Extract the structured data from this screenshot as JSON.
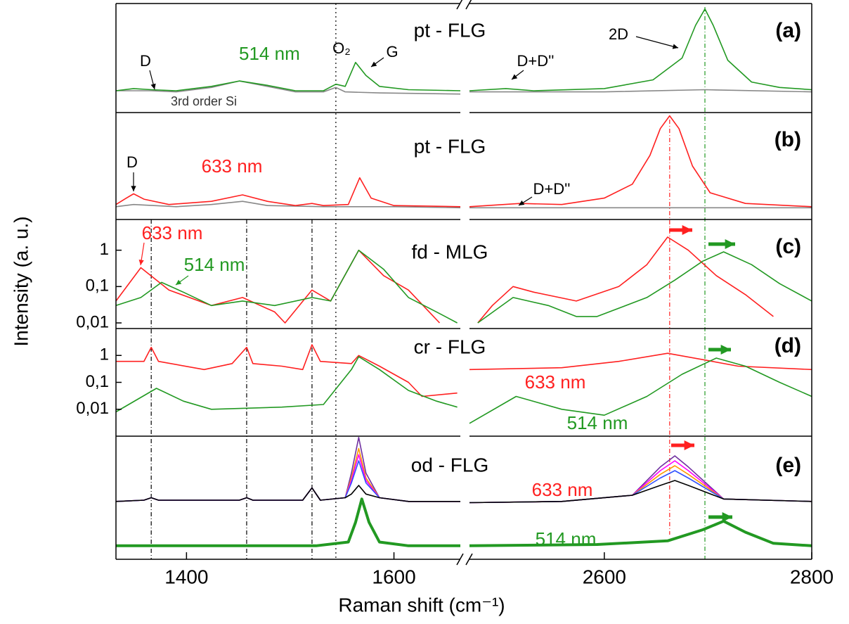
{
  "chart_data": [
    {
      "type": "line",
      "label": "pt - FLG",
      "panel": "(a)",
      "log_y": false,
      "ylim": [
        0,
        1
      ],
      "annotations": [
        "pt - FLG",
        "(a)",
        "514 nm",
        "D",
        "O₂",
        "G",
        "3rd order Si",
        "2D",
        "D+D''"
      ],
      "series": [
        {
          "color": "#888888",
          "x": [
            1332,
            1366,
            1390,
            1424,
            1451,
            1478,
            1505,
            1532,
            1544,
            1553,
            1586,
            1664
          ],
          "values": [
            0.2,
            0.2,
            0.19,
            0.23,
            0.29,
            0.24,
            0.19,
            0.19,
            0.23,
            0.19,
            0.18,
            0.17
          ]
        },
        {
          "color": "#888888",
          "x": [
            2470,
            2600,
            2697,
            2800
          ],
          "values": [
            0.19,
            0.19,
            0.21,
            0.19
          ]
        },
        {
          "color": "#229922",
          "x": [
            1332,
            1349,
            1366,
            1390,
            1424,
            1451,
            1478,
            1505,
            1532,
            1544,
            1553,
            1563,
            1573,
            1586,
            1614,
            1664
          ],
          "values": [
            0.2,
            0.22,
            0.21,
            0.2,
            0.24,
            0.29,
            0.25,
            0.2,
            0.2,
            0.26,
            0.24,
            0.46,
            0.34,
            0.24,
            0.21,
            0.2
          ]
        },
        {
          "color": "#229922",
          "x": [
            2470,
            2505,
            2532,
            2600,
            2647,
            2675,
            2688,
            2697,
            2705,
            2719,
            2742,
            2769,
            2800
          ],
          "values": [
            0.2,
            0.22,
            0.2,
            0.22,
            0.3,
            0.5,
            0.8,
            0.95,
            0.8,
            0.48,
            0.28,
            0.23,
            0.21
          ]
        }
      ]
    },
    {
      "type": "line",
      "label": "pt - FLG",
      "panel": "(b)",
      "log_y": false,
      "ylim": [
        0,
        1
      ],
      "annotations": [
        "pt - FLG",
        "(b)",
        "633 nm",
        "D",
        "D+D''"
      ],
      "series": [
        {
          "color": "#888888",
          "x": [
            1332,
            1349,
            1390,
            1424,
            1454,
            1478,
            1532,
            1600,
            1664
          ],
          "values": [
            0.12,
            0.14,
            0.12,
            0.14,
            0.17,
            0.13,
            0.12,
            0.12,
            0.11
          ]
        },
        {
          "color": "#888888",
          "x": [
            2470,
            2800
          ],
          "values": [
            0.11,
            0.11
          ]
        },
        {
          "color": "#ff2020",
          "x": [
            1332,
            1342,
            1349,
            1359,
            1383,
            1424,
            1454,
            1478,
            1505,
            1521,
            1532,
            1556,
            1567,
            1578,
            1600,
            1664
          ],
          "values": [
            0.14,
            0.2,
            0.24,
            0.19,
            0.14,
            0.17,
            0.23,
            0.17,
            0.13,
            0.15,
            0.13,
            0.14,
            0.39,
            0.2,
            0.13,
            0.12
          ]
        },
        {
          "color": "#ff2020",
          "x": [
            2470,
            2519,
            2559,
            2600,
            2627,
            2644,
            2654,
            2663,
            2672,
            2685,
            2702,
            2736,
            2800
          ],
          "values": [
            0.12,
            0.15,
            0.14,
            0.2,
            0.33,
            0.6,
            0.85,
            0.97,
            0.85,
            0.5,
            0.25,
            0.15,
            0.12
          ]
        }
      ]
    },
    {
      "type": "line",
      "label": "fd - MLG",
      "panel": "(c)",
      "log_y": true,
      "ylim": [
        0.007,
        7
      ],
      "yticks": [
        1,
        {
          "value": 0.1,
          "label": "0,1"
        },
        {
          "value": 0.01,
          "label": "0,01"
        }
      ],
      "annotations": [
        "fd - MLG",
        "(c)",
        "633 nm",
        "514 nm"
      ],
      "series": [
        {
          "color": "#ff2020",
          "x": [
            1332,
            1356,
            1383,
            1424,
            1454,
            1485,
            1495,
            1521,
            1539,
            1566,
            1590,
            1614,
            1634,
            1644
          ],
          "values": [
            0.04,
            0.33,
            0.08,
            0.03,
            0.05,
            0.02,
            0.01,
            0.08,
            0.04,
            1,
            0.2,
            0.08,
            0.02,
            0.01
          ]
        },
        {
          "color": "#229922",
          "x": [
            1332,
            1356,
            1376,
            1397,
            1424,
            1454,
            1485,
            1521,
            1539,
            1566,
            1590,
            1614,
            1641,
            1661
          ],
          "values": [
            0.03,
            0.05,
            0.13,
            0.07,
            0.03,
            0.04,
            0.03,
            0.05,
            0.04,
            1,
            0.3,
            0.05,
            0.02,
            0.01
          ]
        },
        {
          "color": "#ff2020",
          "x": [
            2478,
            2492,
            2512,
            2532,
            2573,
            2614,
            2641,
            2661,
            2681,
            2708,
            2736,
            2763
          ],
          "values": [
            0.01,
            0.03,
            0.1,
            0.07,
            0.04,
            0.1,
            0.4,
            2.3,
            1,
            0.2,
            0.06,
            0.015
          ]
        },
        {
          "color": "#229922",
          "x": [
            2478,
            2512,
            2546,
            2573,
            2593,
            2641,
            2668,
            2695,
            2715,
            2742,
            2769,
            2800
          ],
          "values": [
            0.01,
            0.05,
            0.03,
            0.015,
            0.015,
            0.05,
            0.15,
            0.5,
            0.9,
            0.4,
            0.12,
            0.04
          ]
        }
      ]
    },
    {
      "type": "line",
      "label": "cr - FLG",
      "panel": "(d)",
      "log_y": true,
      "ylim": [
        0.001,
        10
      ],
      "yticks": [
        1,
        {
          "value": 0.1,
          "label": "0,1"
        },
        {
          "value": 0.01,
          "label": "0,01"
        }
      ],
      "annotations": [
        "cr - FLG",
        "(d)",
        "633 nm",
        "514 nm"
      ],
      "series": [
        {
          "color": "#ff2020",
          "x": [
            1332,
            1359,
            1366,
            1373,
            1417,
            1444,
            1458,
            1464,
            1492,
            1512,
            1521,
            1529,
            1559,
            1566,
            1586,
            1614,
            1627,
            1661
          ],
          "values": [
            0.6,
            0.6,
            2,
            0.6,
            0.3,
            0.5,
            2,
            0.5,
            0.4,
            0.3,
            2.5,
            0.6,
            0.5,
            1,
            0.4,
            0.1,
            0.03,
            0.04
          ]
        },
        {
          "color": "#229922",
          "x": [
            1332,
            1371,
            1397,
            1424,
            1492,
            1532,
            1559,
            1566,
            1586,
            1614,
            1641,
            1661
          ],
          "values": [
            0.008,
            0.06,
            0.02,
            0.01,
            0.012,
            0.015,
            0.3,
            0.9,
            0.3,
            0.05,
            0.02,
            0.012
          ]
        },
        {
          "color": "#ff2020",
          "x": [
            2470,
            2559,
            2614,
            2661,
            2695,
            2729,
            2800
          ],
          "values": [
            0.3,
            0.35,
            0.6,
            1.2,
            0.7,
            0.4,
            0.3
          ]
        },
        {
          "color": "#229922",
          "x": [
            2470,
            2515,
            2559,
            2600,
            2641,
            2675,
            2708,
            2736,
            2769,
            2800
          ],
          "values": [
            0.003,
            0.03,
            0.01,
            0.006,
            0.03,
            0.2,
            0.8,
            0.4,
            0.1,
            0.03
          ]
        }
      ]
    },
    {
      "type": "line",
      "label": "od - FLG",
      "panel": "(e)",
      "log_y": false,
      "ylim": [
        0,
        1
      ],
      "annotations": [
        "od - FLG",
        "(e)",
        "633 nm",
        "514 nm"
      ],
      "series": [
        {
          "color": "#7030a0",
          "x": [
            1332,
            1359,
            1366,
            1373,
            1451,
            1458,
            1464,
            1512,
            1521,
            1529,
            1553,
            1559,
            1566,
            1573,
            1586,
            1614,
            1664
          ],
          "values": [
            0.47,
            0.48,
            0.5,
            0.48,
            0.48,
            0.5,
            0.48,
            0.48,
            0.58,
            0.48,
            0.5,
            0.7,
            0.99,
            0.7,
            0.5,
            0.47,
            0.47
          ]
        },
        {
          "color": "#ff9900",
          "x": [
            1332,
            1359,
            1366,
            1373,
            1451,
            1458,
            1464,
            1512,
            1521,
            1529,
            1553,
            1559,
            1566,
            1573,
            1586,
            1614,
            1664
          ],
          "values": [
            0.47,
            0.48,
            0.5,
            0.48,
            0.48,
            0.5,
            0.48,
            0.48,
            0.58,
            0.48,
            0.5,
            0.66,
            0.9,
            0.66,
            0.5,
            0.47,
            0.47
          ]
        },
        {
          "color": "#ff00ff",
          "x": [
            1332,
            1359,
            1366,
            1373,
            1451,
            1458,
            1464,
            1512,
            1521,
            1529,
            1553,
            1559,
            1566,
            1573,
            1586,
            1614,
            1664
          ],
          "values": [
            0.47,
            0.48,
            0.5,
            0.48,
            0.48,
            0.5,
            0.48,
            0.48,
            0.58,
            0.48,
            0.5,
            0.64,
            0.85,
            0.64,
            0.5,
            0.47,
            0.47
          ]
        },
        {
          "color": "#3050ff",
          "x": [
            1332,
            1359,
            1366,
            1373,
            1451,
            1458,
            1464,
            1512,
            1521,
            1529,
            1553,
            1559,
            1566,
            1573,
            1586,
            1614,
            1664
          ],
          "values": [
            0.47,
            0.48,
            0.5,
            0.48,
            0.48,
            0.5,
            0.48,
            0.48,
            0.58,
            0.48,
            0.5,
            0.62,
            0.8,
            0.62,
            0.5,
            0.47,
            0.47
          ]
        },
        {
          "color": "#000000",
          "x": [
            1332,
            1359,
            1366,
            1373,
            1451,
            1458,
            1464,
            1512,
            1521,
            1529,
            1553,
            1559,
            1566,
            1573,
            1586,
            1614,
            1664
          ],
          "values": [
            0.47,
            0.48,
            0.5,
            0.48,
            0.48,
            0.5,
            0.48,
            0.48,
            0.58,
            0.48,
            0.5,
            0.53,
            0.6,
            0.53,
            0.5,
            0.47,
            0.47
          ]
        },
        {
          "color": "#7030a0",
          "x": [
            2470,
            2559,
            2627,
            2654,
            2668,
            2681,
            2715,
            2800
          ],
          "values": [
            0.46,
            0.47,
            0.52,
            0.75,
            0.84,
            0.75,
            0.49,
            0.47
          ]
        },
        {
          "color": "#ff00ff",
          "x": [
            2470,
            2559,
            2627,
            2654,
            2668,
            2681,
            2715,
            2800
          ],
          "values": [
            0.46,
            0.47,
            0.52,
            0.72,
            0.8,
            0.72,
            0.49,
            0.47
          ]
        },
        {
          "color": "#ff9900",
          "x": [
            2470,
            2559,
            2627,
            2654,
            2668,
            2681,
            2715,
            2800
          ],
          "values": [
            0.46,
            0.47,
            0.52,
            0.69,
            0.76,
            0.69,
            0.49,
            0.47
          ]
        },
        {
          "color": "#3050ff",
          "x": [
            2470,
            2559,
            2627,
            2654,
            2668,
            2681,
            2715,
            2800
          ],
          "values": [
            0.46,
            0.47,
            0.52,
            0.66,
            0.72,
            0.66,
            0.49,
            0.47
          ]
        },
        {
          "color": "#000000",
          "x": [
            2470,
            2559,
            2627,
            2654,
            2668,
            2681,
            2715,
            2800
          ],
          "values": [
            0.46,
            0.47,
            0.52,
            0.6,
            0.64,
            0.6,
            0.49,
            0.47
          ]
        },
        {
          "color": "#229922",
          "width": 4,
          "x": [
            1332,
            1424,
            1525,
            1556,
            1563,
            1569,
            1576,
            1586,
            1614,
            1664
          ],
          "values": [
            0.11,
            0.11,
            0.11,
            0.14,
            0.3,
            0.49,
            0.3,
            0.14,
            0.11,
            0.11
          ]
        },
        {
          "color": "#229922",
          "width": 4,
          "x": [
            2470,
            2593,
            2661,
            2695,
            2715,
            2736,
            2763,
            2800
          ],
          "values": [
            0.11,
            0.12,
            0.15,
            0.24,
            0.31,
            0.22,
            0.13,
            0.11
          ]
        }
      ]
    }
  ],
  "x_axis": {
    "label": "Raman shift (cm⁻¹)",
    "xlim": [
      [
        1332,
        1664
      ],
      [
        2470,
        2800
      ]
    ],
    "xticks": [
      1400,
      1600,
      2600,
      2800
    ]
  },
  "y_label": "Intensity (a. u.)",
  "reference_lines": [
    {
      "x": 1544,
      "color": "#000000",
      "dash": "2,4"
    },
    {
      "x": 1366,
      "color": "#000000",
      "dash": "6,3,1,3"
    },
    {
      "x": 1458,
      "color": "#000000",
      "dash": "6,3,1,3"
    },
    {
      "x": 1521,
      "color": "#000000",
      "dash": "6,3,1,3"
    },
    {
      "x": 2663,
      "color": "#ff2020",
      "dash": "6,3,1,3"
    },
    {
      "x": 2697,
      "color": "#229922",
      "dash": "6,3,1,3"
    }
  ]
}
